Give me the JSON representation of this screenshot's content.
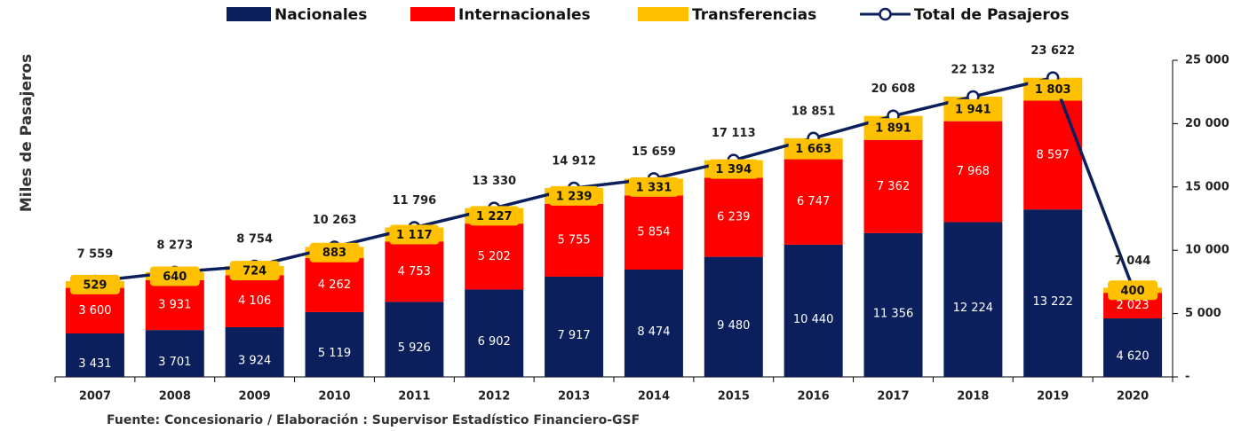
{
  "chart_data": {
    "type": "bar",
    "stacked": true,
    "y_label": "Miles de Pasajeros",
    "source": "Fuente: Concesionario / Elaboración : Supervisor Estadístico Financiero-GSF",
    "categories": [
      "2007",
      "2008",
      "2009",
      "2010",
      "2011",
      "2012",
      "2013",
      "2014",
      "2015",
      "2016",
      "2017",
      "2018",
      "2019",
      "2020"
    ],
    "series": [
      {
        "name": "Nacionales",
        "color": "#0b1f5c",
        "values": [
          3431,
          3701,
          3924,
          5119,
          5926,
          6902,
          7917,
          8474,
          9480,
          10440,
          11356,
          12224,
          13222,
          4620
        ],
        "value_labels": [
          "3 431",
          "3 701",
          "3 924",
          "5 119",
          "5 926",
          "6 902",
          "7 917",
          "8 474",
          "9 480",
          "10 440",
          "11 356",
          "12 224",
          "13 222",
          "4 620"
        ]
      },
      {
        "name": "Internacionales",
        "color": "#ff0000",
        "values": [
          3600,
          3931,
          4106,
          4262,
          4753,
          5202,
          5755,
          5854,
          6239,
          6747,
          7362,
          7968,
          8597,
          2023
        ],
        "value_labels": [
          "3 600",
          "3 931",
          "4 106",
          "4 262",
          "4 753",
          "5 202",
          "5 755",
          "5 854",
          "6 239",
          "6 747",
          "7 362",
          "7 968",
          "8 597",
          "2 023"
        ]
      },
      {
        "name": "Transferencias",
        "color": "#ffc000",
        "values": [
          529,
          640,
          724,
          883,
          1117,
          1227,
          1239,
          1331,
          1394,
          1663,
          1891,
          1941,
          1803,
          400
        ],
        "value_labels": [
          "529",
          "640",
          "724",
          "883",
          "1 117",
          "1 227",
          "1 239",
          "1 331",
          "1 394",
          "1 663",
          "1 891",
          "1 941",
          "1 803",
          "400"
        ]
      },
      {
        "name": "Total de Pasajeros",
        "type": "line",
        "color": "#0b1f5c",
        "values": [
          7559,
          8273,
          8754,
          10263,
          11796,
          13330,
          14912,
          15659,
          17113,
          18851,
          20608,
          22132,
          23622,
          7044
        ],
        "value_labels": [
          "7 559",
          "8 273",
          "8 754",
          "10 263",
          "11 796",
          "13 330",
          "14 912",
          "15 659",
          "17 113",
          "18 851",
          "20 608",
          "22 132",
          "23 622",
          "7 044"
        ]
      }
    ],
    "ylim": [
      0,
      25000
    ],
    "yticks": [
      {
        "value": 0,
        "label": "-"
      },
      {
        "value": 5000,
        "label": "5 000"
      },
      {
        "value": 10000,
        "label": "10 000"
      },
      {
        "value": 15000,
        "label": "15 000"
      },
      {
        "value": 20000,
        "label": "20 000"
      },
      {
        "value": 25000,
        "label": "25 000"
      }
    ],
    "y_axis_side": "right",
    "legend": "top"
  }
}
